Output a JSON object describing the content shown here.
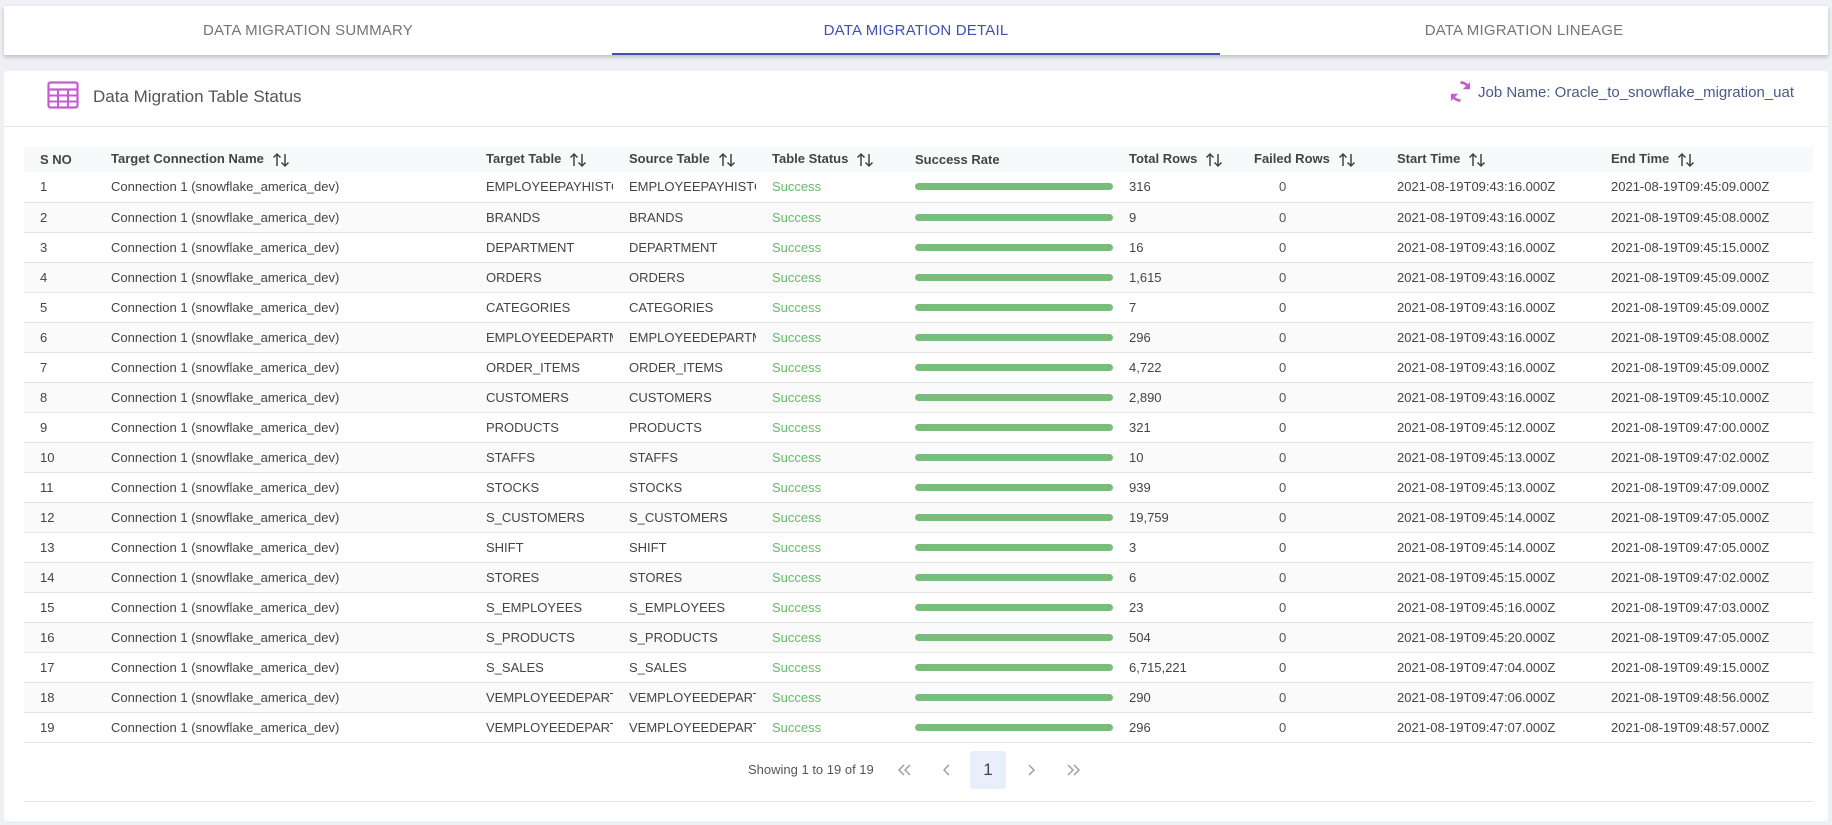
{
  "tabs": [
    {
      "label": "DATA MIGRATION SUMMARY"
    },
    {
      "label": "DATA MIGRATION DETAIL"
    },
    {
      "label": "DATA MIGRATION LINEAGE"
    }
  ],
  "active_tab": 1,
  "header": {
    "title": "Data Migration Table Status",
    "job_name": "Job Name: Oracle_to_snowflake_migration_uat"
  },
  "colors": {
    "accent": "#3f51b5",
    "icon": "#c65bd0",
    "success": "#66bb6a",
    "bar": "#78bd7a"
  },
  "table": {
    "columns": [
      {
        "label": "S NO",
        "sortable": false
      },
      {
        "label": "Target Connection Name",
        "sortable": true
      },
      {
        "label": "Target Table",
        "sortable": true
      },
      {
        "label": "Source Table",
        "sortable": true
      },
      {
        "label": "Table Status",
        "sortable": true
      },
      {
        "label": "Success Rate",
        "sortable": false
      },
      {
        "label": "Total Rows",
        "sortable": true
      },
      {
        "label": "Failed Rows",
        "sortable": true
      },
      {
        "label": "Start Time",
        "sortable": true
      },
      {
        "label": "End Time",
        "sortable": true
      }
    ],
    "rows": [
      {
        "sno": "1",
        "conn": "Connection 1 (snowflake_america_dev)",
        "target": "EMPLOYEEPAYHISTORY",
        "source": "EMPLOYEEPAYHISTORY",
        "status": "Success",
        "rate": 1,
        "total": "316",
        "failed": "0",
        "start": "2021-08-19T09:43:16.000Z",
        "end": "2021-08-19T09:45:09.000Z"
      },
      {
        "sno": "2",
        "conn": "Connection 1 (snowflake_america_dev)",
        "target": "BRANDS",
        "source": "BRANDS",
        "status": "Success",
        "rate": 1,
        "total": "9",
        "failed": "0",
        "start": "2021-08-19T09:43:16.000Z",
        "end": "2021-08-19T09:45:08.000Z"
      },
      {
        "sno": "3",
        "conn": "Connection 1 (snowflake_america_dev)",
        "target": "DEPARTMENT",
        "source": "DEPARTMENT",
        "status": "Success",
        "rate": 1,
        "total": "16",
        "failed": "0",
        "start": "2021-08-19T09:43:16.000Z",
        "end": "2021-08-19T09:45:15.000Z"
      },
      {
        "sno": "4",
        "conn": "Connection 1 (snowflake_america_dev)",
        "target": "ORDERS",
        "source": "ORDERS",
        "status": "Success",
        "rate": 1,
        "total": "1,615",
        "failed": "0",
        "start": "2021-08-19T09:43:16.000Z",
        "end": "2021-08-19T09:45:09.000Z"
      },
      {
        "sno": "5",
        "conn": "Connection 1 (snowflake_america_dev)",
        "target": "CATEGORIES",
        "source": "CATEGORIES",
        "status": "Success",
        "rate": 1,
        "total": "7",
        "failed": "0",
        "start": "2021-08-19T09:43:16.000Z",
        "end": "2021-08-19T09:45:09.000Z"
      },
      {
        "sno": "6",
        "conn": "Connection 1 (snowflake_america_dev)",
        "target": "EMPLOYEEDEPARTMENT",
        "source": "EMPLOYEEDEPARTMENT",
        "status": "Success",
        "rate": 1,
        "total": "296",
        "failed": "0",
        "start": "2021-08-19T09:43:16.000Z",
        "end": "2021-08-19T09:45:08.000Z"
      },
      {
        "sno": "7",
        "conn": "Connection 1 (snowflake_america_dev)",
        "target": "ORDER_ITEMS",
        "source": "ORDER_ITEMS",
        "status": "Success",
        "rate": 1,
        "total": "4,722",
        "failed": "0",
        "start": "2021-08-19T09:43:16.000Z",
        "end": "2021-08-19T09:45:09.000Z"
      },
      {
        "sno": "8",
        "conn": "Connection 1 (snowflake_america_dev)",
        "target": "CUSTOMERS",
        "source": "CUSTOMERS",
        "status": "Success",
        "rate": 1,
        "total": "2,890",
        "failed": "0",
        "start": "2021-08-19T09:43:16.000Z",
        "end": "2021-08-19T09:45:10.000Z"
      },
      {
        "sno": "9",
        "conn": "Connection 1 (snowflake_america_dev)",
        "target": "PRODUCTS",
        "source": "PRODUCTS",
        "status": "Success",
        "rate": 1,
        "total": "321",
        "failed": "0",
        "start": "2021-08-19T09:45:12.000Z",
        "end": "2021-08-19T09:47:00.000Z"
      },
      {
        "sno": "10",
        "conn": "Connection 1 (snowflake_america_dev)",
        "target": "STAFFS",
        "source": "STAFFS",
        "status": "Success",
        "rate": 1,
        "total": "10",
        "failed": "0",
        "start": "2021-08-19T09:45:13.000Z",
        "end": "2021-08-19T09:47:02.000Z"
      },
      {
        "sno": "11",
        "conn": "Connection 1 (snowflake_america_dev)",
        "target": "STOCKS",
        "source": "STOCKS",
        "status": "Success",
        "rate": 1,
        "total": "939",
        "failed": "0",
        "start": "2021-08-19T09:45:13.000Z",
        "end": "2021-08-19T09:47:09.000Z"
      },
      {
        "sno": "12",
        "conn": "Connection 1 (snowflake_america_dev)",
        "target": "S_CUSTOMERS",
        "source": "S_CUSTOMERS",
        "status": "Success",
        "rate": 1,
        "total": "19,759",
        "failed": "0",
        "start": "2021-08-19T09:45:14.000Z",
        "end": "2021-08-19T09:47:05.000Z"
      },
      {
        "sno": "13",
        "conn": "Connection 1 (snowflake_america_dev)",
        "target": "SHIFT",
        "source": "SHIFT",
        "status": "Success",
        "rate": 1,
        "total": "3",
        "failed": "0",
        "start": "2021-08-19T09:45:14.000Z",
        "end": "2021-08-19T09:47:05.000Z"
      },
      {
        "sno": "14",
        "conn": "Connection 1 (snowflake_america_dev)",
        "target": "STORES",
        "source": "STORES",
        "status": "Success",
        "rate": 1,
        "total": "6",
        "failed": "0",
        "start": "2021-08-19T09:45:15.000Z",
        "end": "2021-08-19T09:47:02.000Z"
      },
      {
        "sno": "15",
        "conn": "Connection 1 (snowflake_america_dev)",
        "target": "S_EMPLOYEES",
        "source": "S_EMPLOYEES",
        "status": "Success",
        "rate": 1,
        "total": "23",
        "failed": "0",
        "start": "2021-08-19T09:45:16.000Z",
        "end": "2021-08-19T09:47:03.000Z"
      },
      {
        "sno": "16",
        "conn": "Connection 1 (snowflake_america_dev)",
        "target": "S_PRODUCTS",
        "source": "S_PRODUCTS",
        "status": "Success",
        "rate": 1,
        "total": "504",
        "failed": "0",
        "start": "2021-08-19T09:45:20.000Z",
        "end": "2021-08-19T09:47:05.000Z"
      },
      {
        "sno": "17",
        "conn": "Connection 1 (snowflake_america_dev)",
        "target": "S_SALES",
        "source": "S_SALES",
        "status": "Success",
        "rate": 1,
        "total": "6,715,221",
        "failed": "0",
        "start": "2021-08-19T09:47:04.000Z",
        "end": "2021-08-19T09:49:15.000Z"
      },
      {
        "sno": "18",
        "conn": "Connection 1 (snowflake_america_dev)",
        "target": "VEMPLOYEEDEPARTMENT",
        "source": "VEMPLOYEEDEPARTMENT",
        "status": "Success",
        "rate": 1,
        "total": "290",
        "failed": "0",
        "start": "2021-08-19T09:47:06.000Z",
        "end": "2021-08-19T09:48:56.000Z"
      },
      {
        "sno": "19",
        "conn": "Connection 1 (snowflake_america_dev)",
        "target": "VEMPLOYEEDEPARTMENTHISTORY",
        "source": "VEMPLOYEEDEPARTMENTHISTORY",
        "status": "Success",
        "rate": 1,
        "total": "296",
        "failed": "0",
        "start": "2021-08-19T09:47:07.000Z",
        "end": "2021-08-19T09:48:57.000Z"
      }
    ]
  },
  "pagination": {
    "summary": "Showing 1 to 19 of 19",
    "first_icon": "double-chevron-left-icon",
    "prev_icon": "chevron-left-icon",
    "current_page": "1",
    "next_icon": "chevron-right-icon",
    "last_icon": "double-chevron-right-icon"
  }
}
